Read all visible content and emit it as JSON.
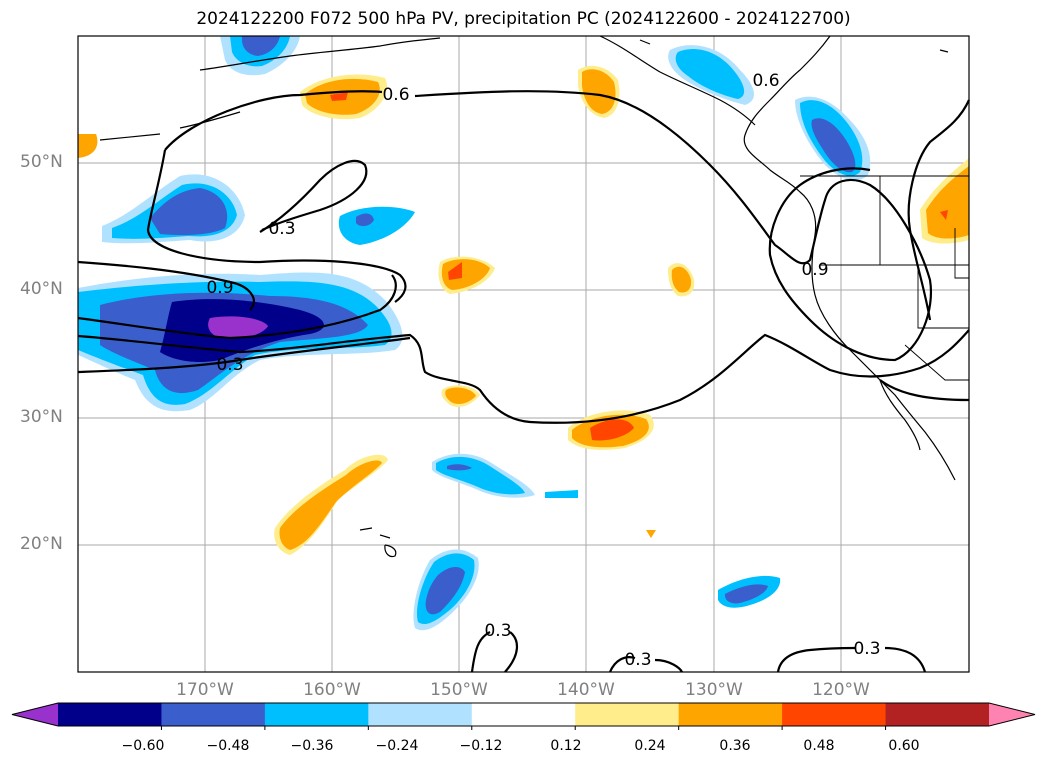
{
  "title": "2024122200 F072 500 hPa PV, precipitation PC (2024122600 - 2024122700)",
  "axes": {
    "lat_labels": [
      "50°N",
      "40°N",
      "30°N",
      "20°N"
    ],
    "lon_labels": [
      "170°W",
      "160°W",
      "150°W",
      "140°W",
      "130°W",
      "120°W"
    ]
  },
  "contour_labels": [
    "0.6",
    "0.6",
    "0.3",
    "0.9",
    "0.9",
    "0.3",
    "0.3",
    "0.3",
    "0.3"
  ],
  "colorbar": {
    "colors": [
      "#9932cc",
      "#00008b",
      "#3a5fcd",
      "#00bfff",
      "#b0e2ff",
      "#ffffff",
      "#ffec8b",
      "#ffa500",
      "#ff4500",
      "#b22222",
      "#ff83b0"
    ],
    "tick_labels": [
      "−0.60",
      "−0.48",
      "−0.36",
      "−0.24",
      "−0.12",
      "0.12",
      "0.24",
      "0.36",
      "0.48",
      "0.60"
    ]
  }
}
